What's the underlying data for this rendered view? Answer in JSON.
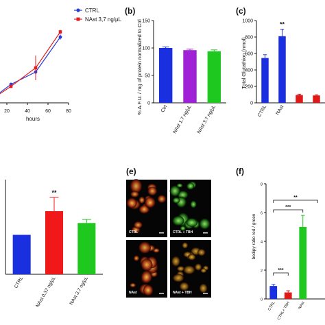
{
  "panels": [
    {
      "id": "a",
      "label": ""
    },
    {
      "id": "b",
      "label": "(b)"
    },
    {
      "id": "c",
      "label": "(c)"
    },
    {
      "id": "d",
      "label": ""
    },
    {
      "id": "e",
      "label": "(e)"
    },
    {
      "id": "f",
      "label": "(f)"
    }
  ],
  "chart_data": [
    {
      "id": "a",
      "type": "line",
      "xlabel": "hours",
      "ylabel": "",
      "xlim": [
        0,
        80
      ],
      "xticks": [
        "20",
        "40",
        "60",
        "80"
      ],
      "series": [
        {
          "name": "CTRL",
          "color": "#2a3bd6",
          "marker": "circle",
          "x": [
            0,
            24,
            48,
            72
          ],
          "y": [
            0,
            0.9,
            1.5,
            3.2
          ],
          "err": [
            0,
            0.08,
            0.3,
            0.12
          ]
        },
        {
          "name": "NAst 3,7 ng/µL",
          "color": "#e02020",
          "marker": "square",
          "x": [
            0,
            24,
            48,
            72
          ],
          "y": [
            0,
            0.8,
            1.7,
            3.45
          ],
          "err": [
            0,
            0.08,
            0.6,
            0.1
          ]
        }
      ]
    },
    {
      "id": "b",
      "type": "bar",
      "ylabel": "% A.F.U. / mg of protein normalized to Ctrl",
      "categories": [
        "Ctrl",
        "NAst 1.7 ng/µL",
        "NAst 3.7 ng/µL"
      ],
      "values": [
        100,
        96,
        94
      ],
      "errors": [
        2,
        2,
        2.5
      ],
      "colors": [
        "#1a2fe0",
        "#a020d8",
        "#1fc81f"
      ],
      "ylim": [
        0,
        150
      ],
      "yticks": [
        "0",
        "50",
        "100",
        "150"
      ]
    },
    {
      "id": "c",
      "type": "bar",
      "ylabel": "Total Glutathion (nmol)",
      "categories": [
        "CTRL",
        "NAst",
        "",
        ""
      ],
      "values": [
        545,
        810,
        95,
        90
      ],
      "errors": [
        40,
        85,
        10,
        8
      ],
      "colors": [
        "#1a2fe0",
        "#1a2fe0",
        "#e01818",
        "#e01818"
      ],
      "ylim": [
        0,
        1000
      ],
      "yticks": [
        "0",
        "200",
        "400",
        "600",
        "800",
        "1000"
      ],
      "annotations": [
        {
          "category": "NAst",
          "text": "**"
        }
      ]
    },
    {
      "id": "d",
      "type": "bar",
      "ylabel": "",
      "categories": [
        "CTRL",
        "NAst 0.37 ng/µL",
        "NAst 3.7 ng/µL"
      ],
      "values": [
        1.0,
        1.6,
        1.3
      ],
      "errors": [
        0,
        0.35,
        0.09
      ],
      "colors": [
        "#1a2fe0",
        "#f01818",
        "#1fc81f"
      ],
      "ylim": [
        0,
        2.4
      ],
      "annotations": [
        {
          "category": "NAst 0.37 ng/µL",
          "text": "**"
        }
      ]
    },
    {
      "id": "f",
      "type": "bar",
      "ylabel": "bodipy ratio red / green",
      "categories": [
        "CTRL",
        "CTRL+ TBH",
        "NAst",
        ""
      ],
      "values": [
        0.9,
        0.45,
        5.0,
        0
      ],
      "errors": [
        0.1,
        0.12,
        0.8,
        0
      ],
      "colors": [
        "#1a2fe0",
        "#e01818",
        "#1fc81f",
        "#1fc81f"
      ],
      "ylim": [
        0,
        8
      ],
      "yticks": [
        "0",
        "2",
        "4",
        "6",
        "8"
      ],
      "brackets": [
        {
          "from": 0,
          "to": 3,
          "text": "**"
        },
        {
          "from": 0,
          "to": 2,
          "text": "***"
        },
        {
          "from": 0,
          "to": 1,
          "text": "***"
        }
      ]
    }
  ],
  "micrographs": {
    "tiles": [
      {
        "label": "CTRL",
        "tone": "redgreen"
      },
      {
        "label": "CTRL + TBH",
        "tone": "green"
      },
      {
        "label": "NAst",
        "tone": "redgreen"
      },
      {
        "label": "NAst + TBH",
        "tone": "orange"
      }
    ]
  }
}
